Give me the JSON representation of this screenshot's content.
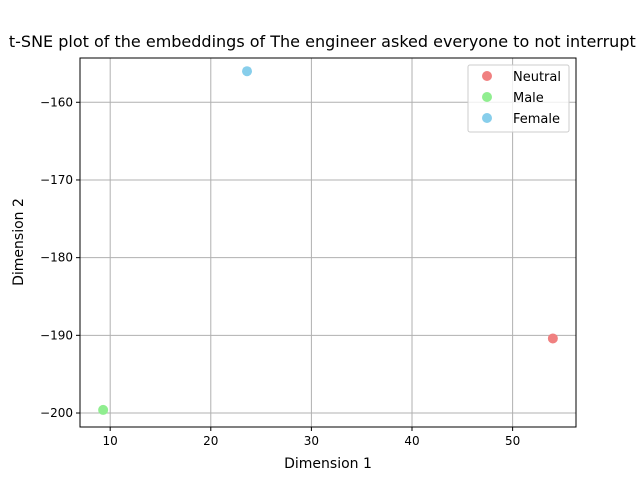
{
  "chart_data": {
    "type": "scatter",
    "title": "t-SNE plot of the embeddings of The engineer asked everyone to not interrupt t",
    "xlabel": "Dimension 1",
    "ylabel": "Dimension 2",
    "xlim": [
      7.0,
      56.3
    ],
    "ylim": [
      -201.8,
      -154.3
    ],
    "xticks": [
      10,
      20,
      30,
      40,
      50
    ],
    "yticks": [
      -200,
      -190,
      -180,
      -170,
      -160
    ],
    "grid": true,
    "legend_position": "top-right",
    "series": [
      {
        "name": "Neutral",
        "color": "#f08080",
        "points": [
          {
            "x": 54.0,
            "y": -190.4
          }
        ]
      },
      {
        "name": "Male",
        "color": "#90ee90",
        "points": [
          {
            "x": 9.3,
            "y": -199.6
          }
        ]
      },
      {
        "name": "Female",
        "color": "#87ceeb",
        "points": [
          {
            "x": 23.6,
            "y": -156.0
          }
        ]
      }
    ]
  }
}
